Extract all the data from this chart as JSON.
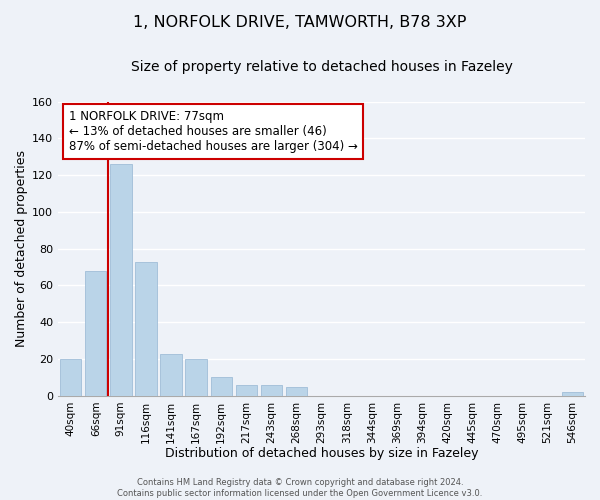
{
  "title1": "1, NORFOLK DRIVE, TAMWORTH, B78 3XP",
  "title2": "Size of property relative to detached houses in Fazeley",
  "xlabel": "Distribution of detached houses by size in Fazeley",
  "ylabel": "Number of detached properties",
  "bar_labels": [
    "40sqm",
    "66sqm",
    "91sqm",
    "116sqm",
    "141sqm",
    "167sqm",
    "192sqm",
    "217sqm",
    "243sqm",
    "268sqm",
    "293sqm",
    "318sqm",
    "344sqm",
    "369sqm",
    "394sqm",
    "420sqm",
    "445sqm",
    "470sqm",
    "495sqm",
    "521sqm",
    "546sqm"
  ],
  "bar_values": [
    20,
    68,
    126,
    73,
    23,
    20,
    10,
    6,
    6,
    5,
    0,
    0,
    0,
    0,
    0,
    0,
    0,
    0,
    0,
    0,
    2
  ],
  "bar_color": "#bad4e8",
  "bar_edge_color": "#a0bdd8",
  "vline_color": "#cc0000",
  "vline_x": 1.5,
  "ylim": [
    0,
    160
  ],
  "yticks": [
    0,
    20,
    40,
    60,
    80,
    100,
    120,
    140,
    160
  ],
  "annotation_title": "1 NORFOLK DRIVE: 77sqm",
  "annotation_line1": "← 13% of detached houses are smaller (46)",
  "annotation_line2": "87% of semi-detached houses are larger (304) →",
  "annotation_box_facecolor": "#ffffff",
  "annotation_box_edgecolor": "#cc0000",
  "footer1": "Contains HM Land Registry data © Crown copyright and database right 2024.",
  "footer2": "Contains public sector information licensed under the Open Government Licence v3.0.",
  "background_color": "#eef2f8",
  "grid_color": "#ffffff",
  "title1_fontsize": 11.5,
  "title2_fontsize": 10,
  "xlabel_fontsize": 9,
  "ylabel_fontsize": 9,
  "tick_fontsize": 7.5,
  "ytick_fontsize": 8,
  "annotation_fontsize": 8.5,
  "footer_fontsize": 6
}
